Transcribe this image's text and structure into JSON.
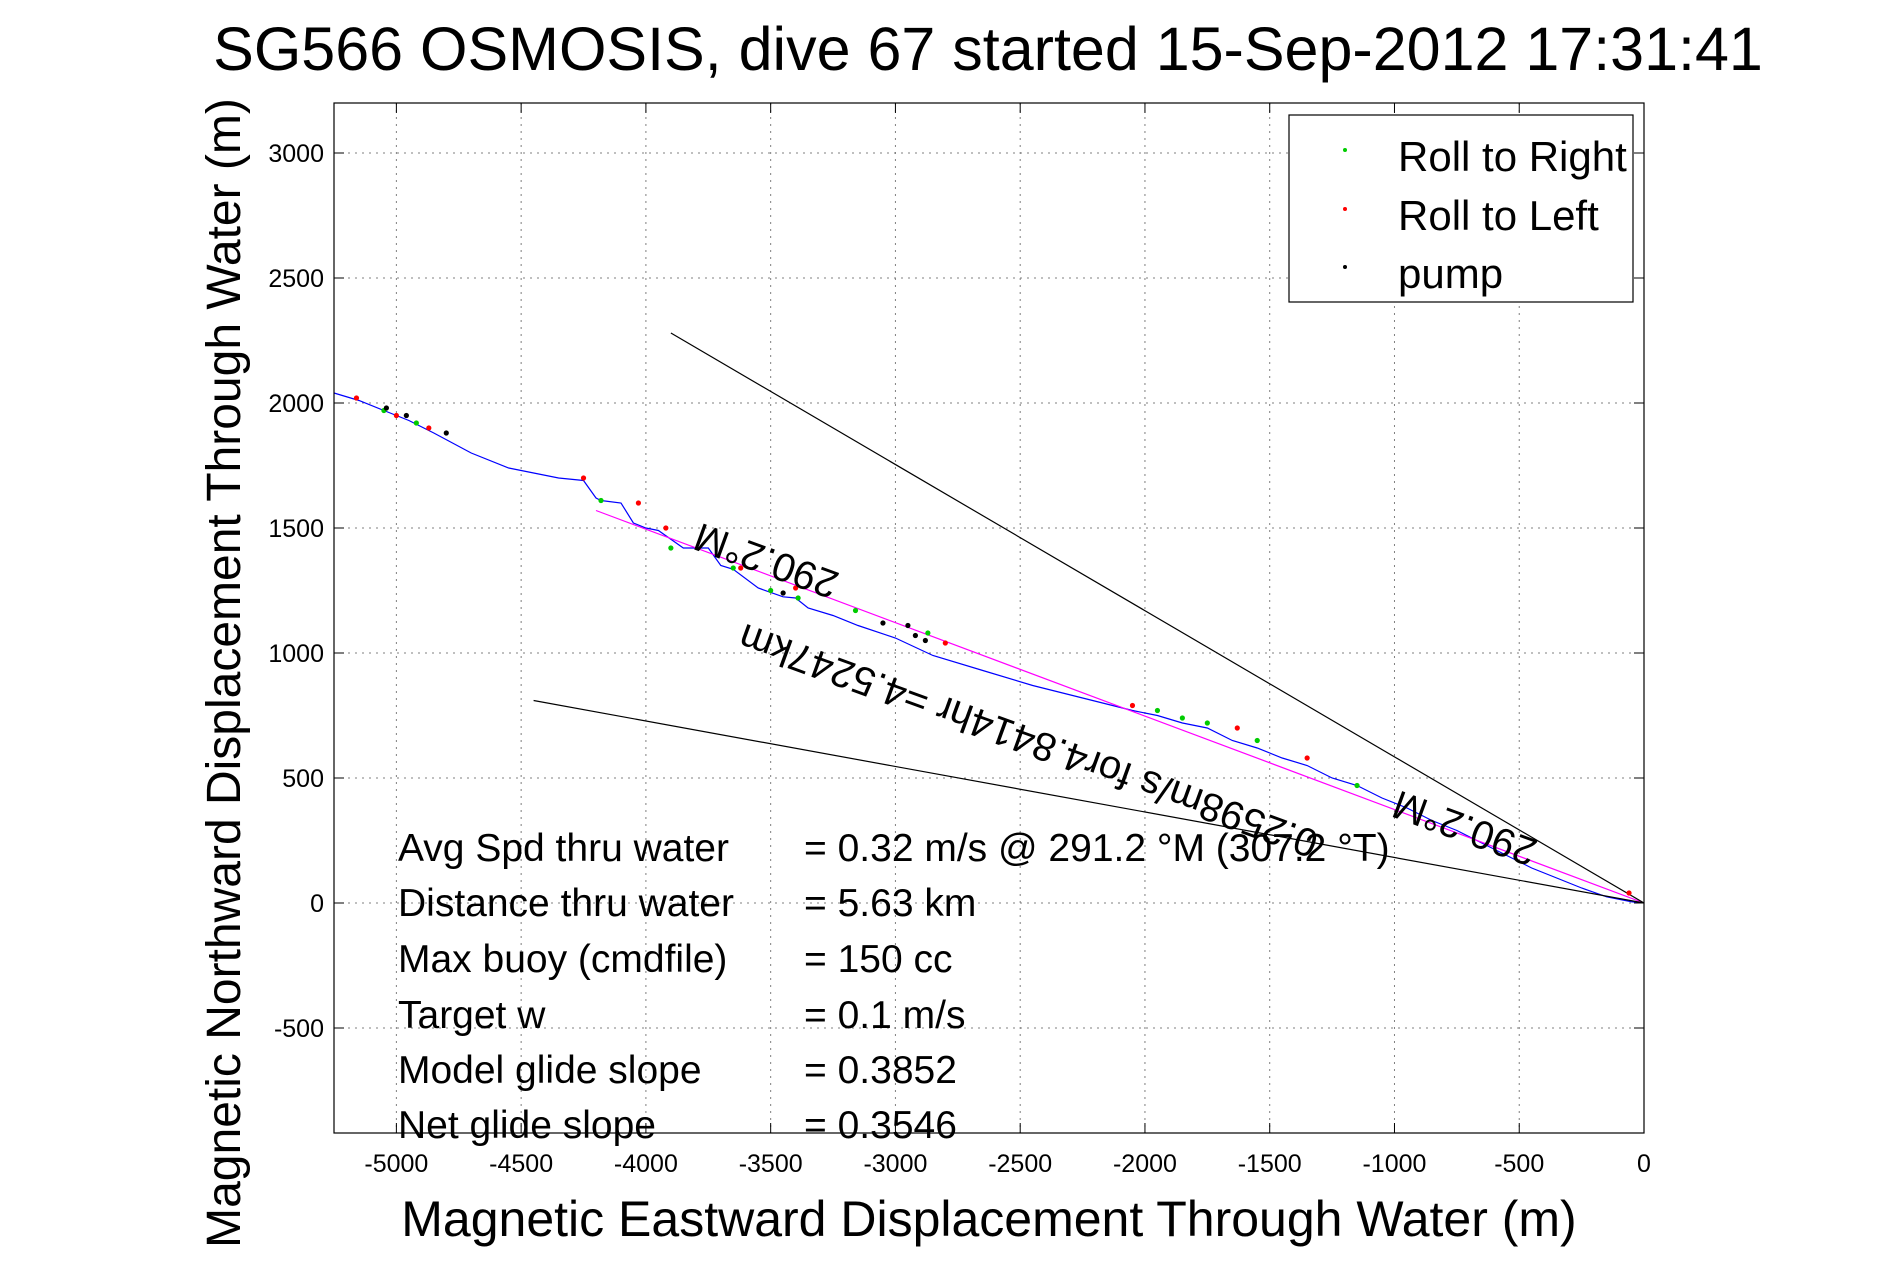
{
  "chart_data": {
    "type": "line",
    "title": "SG566 OSMOSIS, dive 67 started 15-Sep-2012 17:31:41",
    "xlabel": "Magnetic Eastward Displacement Through Water (m)",
    "ylabel": "Magnetic Northward Displacement Through Water (m)",
    "xlim": [
      -5250,
      0
    ],
    "ylim": [
      -920,
      3200
    ],
    "xticks": [
      -5000,
      -4500,
      -4000,
      -3500,
      -3000,
      -2500,
      -2000,
      -1500,
      -1000,
      -500,
      0
    ],
    "yticks": [
      -500,
      0,
      500,
      1000,
      1500,
      2000,
      2500,
      3000
    ],
    "xtick_labels": [
      "-5000",
      "-4500",
      "-4000",
      "-3500",
      "-3000",
      "-2500",
      "-2000",
      "-1500",
      "-1000",
      "-500",
      "0"
    ],
    "ytick_labels": [
      "-500",
      "0",
      "500",
      "1000",
      "1500",
      "2000",
      "2500",
      "3000"
    ],
    "grid": true,
    "legend_position": "top-right",
    "legend": [
      {
        "label": "Roll to Right",
        "color": "#00cc00"
      },
      {
        "label": "Roll to Left",
        "color": "#ff0000"
      },
      {
        "label": "pump",
        "color": "#000000"
      }
    ],
    "series": [
      {
        "name": "track",
        "color": "#0000ff",
        "x": [
          -5250,
          -5150,
          -5050,
          -4950,
          -4850,
          -4700,
          -4550,
          -4350,
          -4250,
          -4200,
          -4180,
          -4100,
          -4050,
          -4000,
          -3950,
          -3850,
          -3750,
          -3700,
          -3650,
          -3550,
          -3450,
          -3400,
          -3350,
          -3250,
          -3150,
          -3000,
          -2850,
          -2650,
          -2450,
          -2250,
          -2050,
          -1950,
          -1850,
          -1750,
          -1650,
          -1550,
          -1450,
          -1350,
          -1250,
          -1150,
          -1050,
          -950,
          -850,
          -750,
          -650,
          -550,
          -450,
          -350,
          -250,
          -150,
          -50,
          0
        ],
        "y": [
          2040,
          2010,
          1970,
          1930,
          1880,
          1800,
          1740,
          1700,
          1690,
          1620,
          1610,
          1600,
          1520,
          1500,
          1490,
          1420,
          1420,
          1350,
          1335,
          1260,
          1225,
          1220,
          1180,
          1150,
          1110,
          1060,
          990,
          930,
          870,
          820,
          770,
          750,
          720,
          700,
          650,
          620,
          580,
          550,
          500,
          470,
          420,
          380,
          330,
          290,
          240,
          190,
          140,
          100,
          60,
          25,
          5,
          0
        ]
      },
      {
        "name": "heading-line",
        "color": "#ff00ff",
        "x": [
          -4200,
          0
        ],
        "y": [
          1570,
          0
        ]
      },
      {
        "name": "envelope-upper",
        "color": "#000000",
        "x": [
          -3900,
          0
        ],
        "y": [
          2280,
          0
        ]
      },
      {
        "name": "envelope-lower",
        "color": "#000000",
        "x": [
          -4450,
          0
        ],
        "y": [
          810,
          0
        ]
      }
    ],
    "markers": {
      "roll_right": {
        "color": "#00cc00",
        "x": [
          -5050,
          -4920,
          -4180,
          -3900,
          -3650,
          -3500,
          -3390,
          -3160,
          -2870,
          -1950,
          -1850,
          -1750,
          -1550,
          -1150
        ],
        "y": [
          1970,
          1920,
          1610,
          1420,
          1340,
          1250,
          1220,
          1170,
          1080,
          770,
          740,
          720,
          650,
          470
        ]
      },
      "roll_left": {
        "color": "#ff0000",
        "x": [
          -5160,
          -5000,
          -4870,
          -4250,
          -4030,
          -3920,
          -3620,
          -3400,
          -2800,
          -2050,
          -1630,
          -1350,
          -60
        ],
        "y": [
          2020,
          1950,
          1900,
          1700,
          1600,
          1500,
          1340,
          1260,
          1040,
          790,
          700,
          580,
          40
        ]
      },
      "pump": {
        "color": "#000000",
        "x": [
          -5040,
          -4960,
          -4800,
          -3450,
          -3050,
          -2950,
          -2920,
          -2880
        ],
        "y": [
          1980,
          1950,
          1880,
          1240,
          1120,
          1110,
          1070,
          1050
        ]
      }
    },
    "annotations": [
      {
        "text": "290.2°M",
        "x": -3500,
        "y": 1420,
        "rotation": 200
      },
      {
        "text": "0.2598m/s for4.8414hr =4.5247km",
        "x": -2450,
        "y": 700,
        "rotation": 200
      },
      {
        "text": "290.2°M",
        "x": -700,
        "y": 350,
        "rotation": 200
      }
    ],
    "stats": [
      {
        "label": "Avg Spd thru water",
        "value": "=  0.32 m/s @ 291.2 °M (307.2 °T)"
      },
      {
        "label": "Distance thru water",
        "value": "=  5.63 km"
      },
      {
        "label": "Max buoy (cmdfile)",
        "value": "= 150 cc"
      },
      {
        "label": "Target w",
        "value": "= 0.1 m/s"
      },
      {
        "label": "Model glide slope",
        "value": "= 0.3852"
      },
      {
        "label": "Net glide slope",
        "value": "= 0.3546"
      }
    ]
  }
}
